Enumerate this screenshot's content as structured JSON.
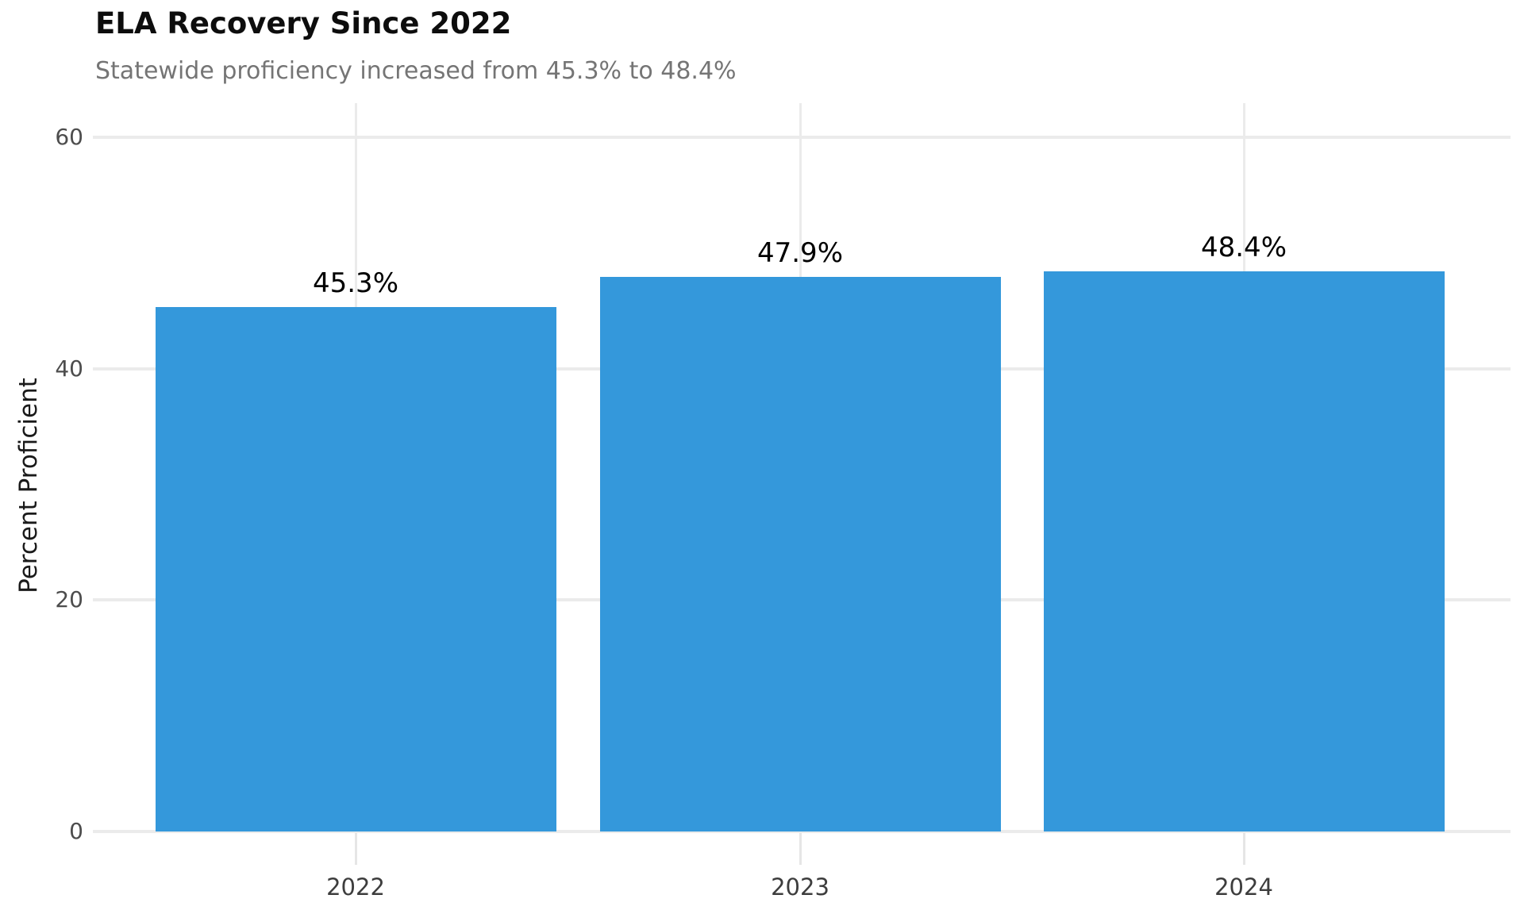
{
  "header": {
    "title": "ELA Recovery Since 2022",
    "subtitle": "Statewide proficiency increased from 45.3% to 48.4%"
  },
  "colors": {
    "bar": "#3498db",
    "grid": "#ebebeb",
    "title_text": "#0d0d0d",
    "subtitle_text": "#757575",
    "tick_text": "#4d4d4d",
    "background": "#ffffff"
  },
  "chart_data": {
    "type": "bar",
    "title": "ELA Recovery Since 2022",
    "subtitle": "Statewide proficiency increased from 45.3% to 48.4%",
    "categories": [
      "2022",
      "2023",
      "2024"
    ],
    "values": [
      45.3,
      47.9,
      48.4
    ],
    "value_labels": [
      "45.3%",
      "47.9%",
      "48.4%"
    ],
    "xlabel": "",
    "ylabel": "Percent Proficient",
    "yticks": [
      0,
      20,
      40,
      60
    ],
    "ylim": [
      0,
      62
    ],
    "grid": "on",
    "legend": "none",
    "bar_color": "#3498db"
  }
}
